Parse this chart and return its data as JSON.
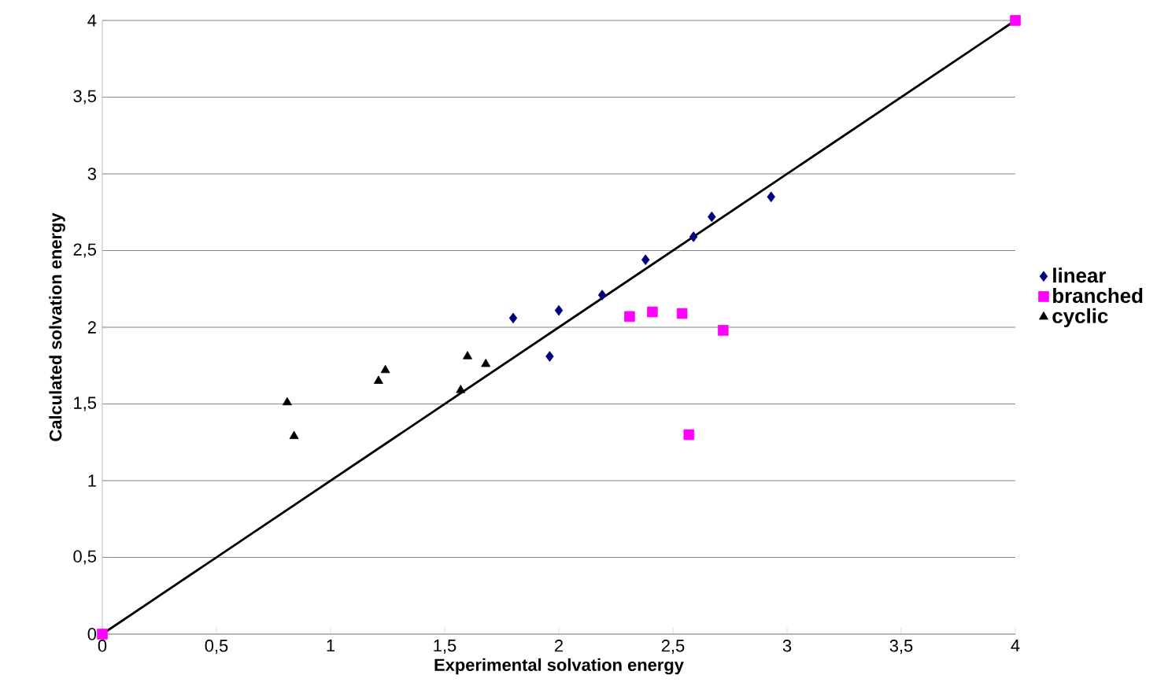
{
  "chart_data": {
    "type": "scatter",
    "xlabel": "Experimental solvation energy",
    "ylabel": "Calculated solvation energy",
    "xlim": [
      0,
      4
    ],
    "ylim": [
      0,
      4
    ],
    "xticks": [
      0,
      {
        "value": 0.5,
        "label": "0,5"
      },
      1,
      {
        "value": 1.5,
        "label": "1,5"
      },
      2,
      {
        "value": 2.5,
        "label": "2,5"
      },
      3,
      {
        "value": 3.5,
        "label": "3,5"
      },
      4
    ],
    "yticks": [
      0,
      {
        "value": 0.5,
        "label": "0,5"
      },
      1,
      {
        "value": 1.5,
        "label": "1,5"
      },
      2,
      {
        "value": 2.5,
        "label": "2,5"
      },
      3,
      {
        "value": 3.5,
        "label": "3,5"
      },
      4
    ],
    "grid": "y",
    "legend": "right",
    "series": [
      {
        "name": "linear",
        "color": "#000080",
        "marker": "diamond",
        "x": [
          1.8,
          2.0,
          2.19,
          2.38,
          1.96,
          2.59,
          2.67,
          2.93
        ],
        "values": [
          2.06,
          2.11,
          2.21,
          2.44,
          1.81,
          2.59,
          2.72,
          2.85
        ]
      },
      {
        "name": "branched",
        "color": "#ff00ff",
        "marker": "square",
        "x": [
          2.31,
          2.41,
          2.54,
          2.72,
          2.57,
          0,
          4
        ],
        "values": [
          2.07,
          2.1,
          2.09,
          1.98,
          1.3,
          0,
          4
        ]
      },
      {
        "name": "cyclic",
        "color": "#000000",
        "marker": "triangle",
        "x": [
          0.81,
          0.84,
          1.21,
          1.24,
          1.57,
          1.6,
          1.68
        ],
        "values": [
          1.51,
          1.29,
          1.65,
          1.72,
          1.59,
          1.81,
          1.76
        ]
      },
      {
        "type": "line",
        "color": "#000000",
        "marker": "none",
        "line_style": "solid",
        "x": [
          0,
          4
        ],
        "values": [
          0,
          4
        ]
      }
    ]
  }
}
